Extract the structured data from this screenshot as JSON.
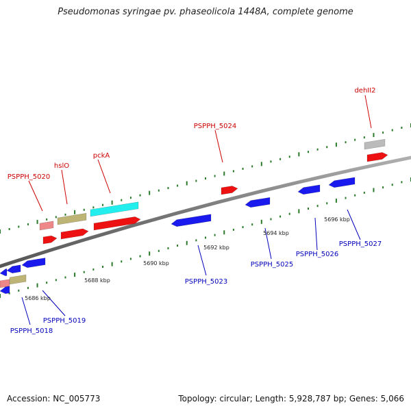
{
  "title": "Pseudomonas syringae pv. phaseolicola 1448A, complete genome",
  "footer": {
    "accession": "Accession: NC_005773",
    "summary": "Topology: circular; Length: 5,928,787 bp; Genes: 5,066"
  },
  "colors": {
    "backbone": "#808080",
    "tick_green": "#2a7a2a",
    "gene_blue": "#1a1aee",
    "gene_red": "#ee1111",
    "gene_pink": "#ee8888",
    "gene_olive": "#bdb476",
    "gene_cyan": "#22eeee",
    "gene_gray": "#bbbbbb",
    "label_red": "#cc0000",
    "label_blue": "#0000bb"
  },
  "scale_labels": [
    "5686 kbp",
    "5688 kbp",
    "5690 kbp",
    "5692 kbp",
    "5694 kbp",
    "5696 kbp"
  ],
  "gene_labels_forward": [
    "PSPPH_5020",
    "hslO",
    "pckA",
    "PSPPH_5024",
    "dehII2"
  ],
  "gene_labels_reverse": [
    "PSPPH_5018",
    "PSPPH_5019",
    "PSPPH_5023",
    "PSPPH_5025",
    "PSPPH_5026",
    "PSPPH_5027"
  ]
}
